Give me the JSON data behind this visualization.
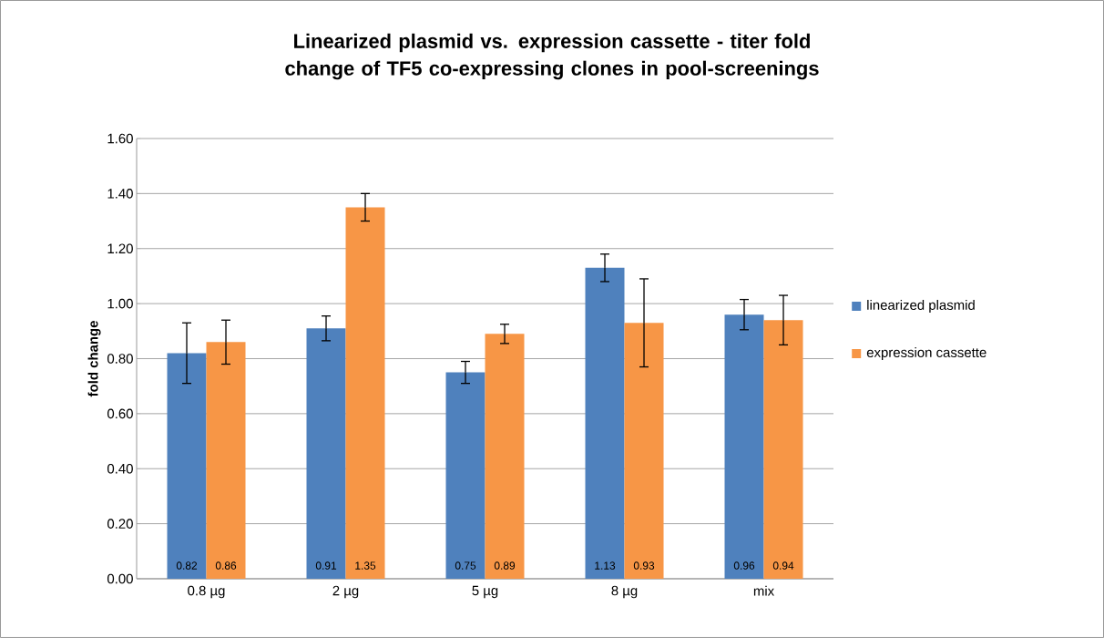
{
  "chart_data": {
    "type": "bar",
    "title": "Linearized plasmid vs. expression cassette - titer fold change of TF5 co-expressing clones in pool-screenings",
    "ylabel": "fold change",
    "categories": [
      "0.8 µg",
      "2 µg",
      "5 µg",
      "8 µg",
      "mix"
    ],
    "series": [
      {
        "name": "linearized plasmid",
        "color": "#4f81bd",
        "values": [
          0.82,
          0.91,
          0.75,
          1.13,
          0.96
        ],
        "errors": [
          0.11,
          0.045,
          0.04,
          0.05,
          0.055
        ],
        "value_labels": [
          "0.82",
          "0.91",
          "0.75",
          "1.13",
          "0.96"
        ]
      },
      {
        "name": "expression cassette",
        "color": "#f79646",
        "values": [
          0.86,
          1.35,
          0.89,
          0.93,
          0.94
        ],
        "errors": [
          0.08,
          0.05,
          0.035,
          0.16,
          0.09
        ],
        "value_labels": [
          "0.86",
          "1.35",
          "0.89",
          "0.93",
          "0.94"
        ]
      }
    ],
    "ylim": [
      0,
      1.6
    ],
    "yticks": [
      {
        "value": 0,
        "label": "0.00"
      },
      {
        "value": 0.2,
        "label": "0.20"
      },
      {
        "value": 0.4,
        "label": "0.40"
      },
      {
        "value": 0.6,
        "label": "0.60"
      },
      {
        "value": 0.8,
        "label": "0.80"
      },
      {
        "value": 1.0,
        "label": "1.00"
      },
      {
        "value": 1.2,
        "label": "1.20"
      },
      {
        "value": 1.4,
        "label": "1.40"
      },
      {
        "value": 1.6,
        "label": "1.60"
      }
    ],
    "grid": "y",
    "legend": "right"
  }
}
